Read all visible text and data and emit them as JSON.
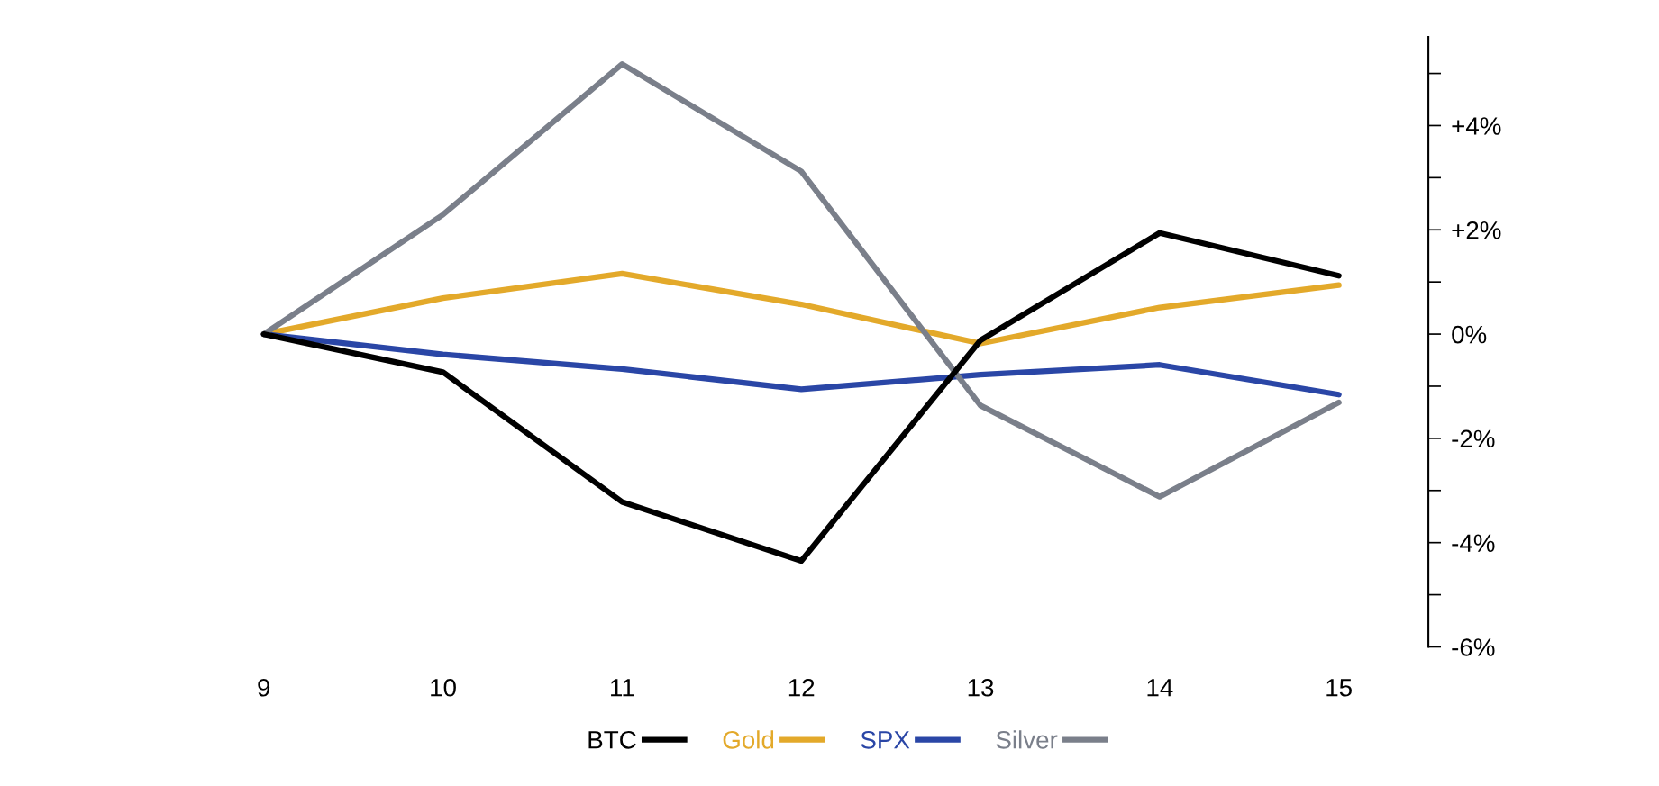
{
  "chart_data": {
    "type": "line",
    "x": [
      9,
      10,
      11,
      12,
      13,
      14,
      15
    ],
    "series": [
      {
        "name": "BTC",
        "color": "#000000",
        "values": [
          0,
          -0.73,
          -3.22,
          -4.35,
          -0.12,
          1.94,
          1.12
        ]
      },
      {
        "name": "Gold",
        "color": "#e3a92a",
        "values": [
          0,
          0.69,
          1.16,
          0.57,
          -0.18,
          0.51,
          0.94
        ]
      },
      {
        "name": "SPX",
        "color": "#2a46a6",
        "values": [
          0,
          -0.39,
          -0.67,
          -1.06,
          -0.78,
          -0.59,
          -1.16
        ]
      },
      {
        "name": "Silver",
        "color": "#7a7f8a",
        "values": [
          0,
          2.29,
          5.18,
          3.12,
          -1.37,
          -3.12,
          -1.31
        ]
      }
    ],
    "xlim": [
      9,
      15.5
    ],
    "xticks": [
      9,
      10,
      11,
      12,
      13,
      14,
      15
    ],
    "ylim": [
      -6,
      5.7
    ],
    "yticks": [
      {
        "value": -6,
        "label": "-6%"
      },
      {
        "value": -5,
        "label": null
      },
      {
        "value": -4,
        "label": "-4%"
      },
      {
        "value": -3,
        "label": null
      },
      {
        "value": -2,
        "label": "-2%"
      },
      {
        "value": -1,
        "label": null
      },
      {
        "value": 0,
        "label": "0%"
      },
      {
        "value": 1,
        "label": null
      },
      {
        "value": 2,
        "label": "+2%"
      },
      {
        "value": 3,
        "label": null
      },
      {
        "value": 4,
        "label": "+4%"
      },
      {
        "value": 5,
        "label": null
      }
    ],
    "grid": false,
    "legend": "bottom",
    "marker": "none",
    "line_style": "solid"
  }
}
